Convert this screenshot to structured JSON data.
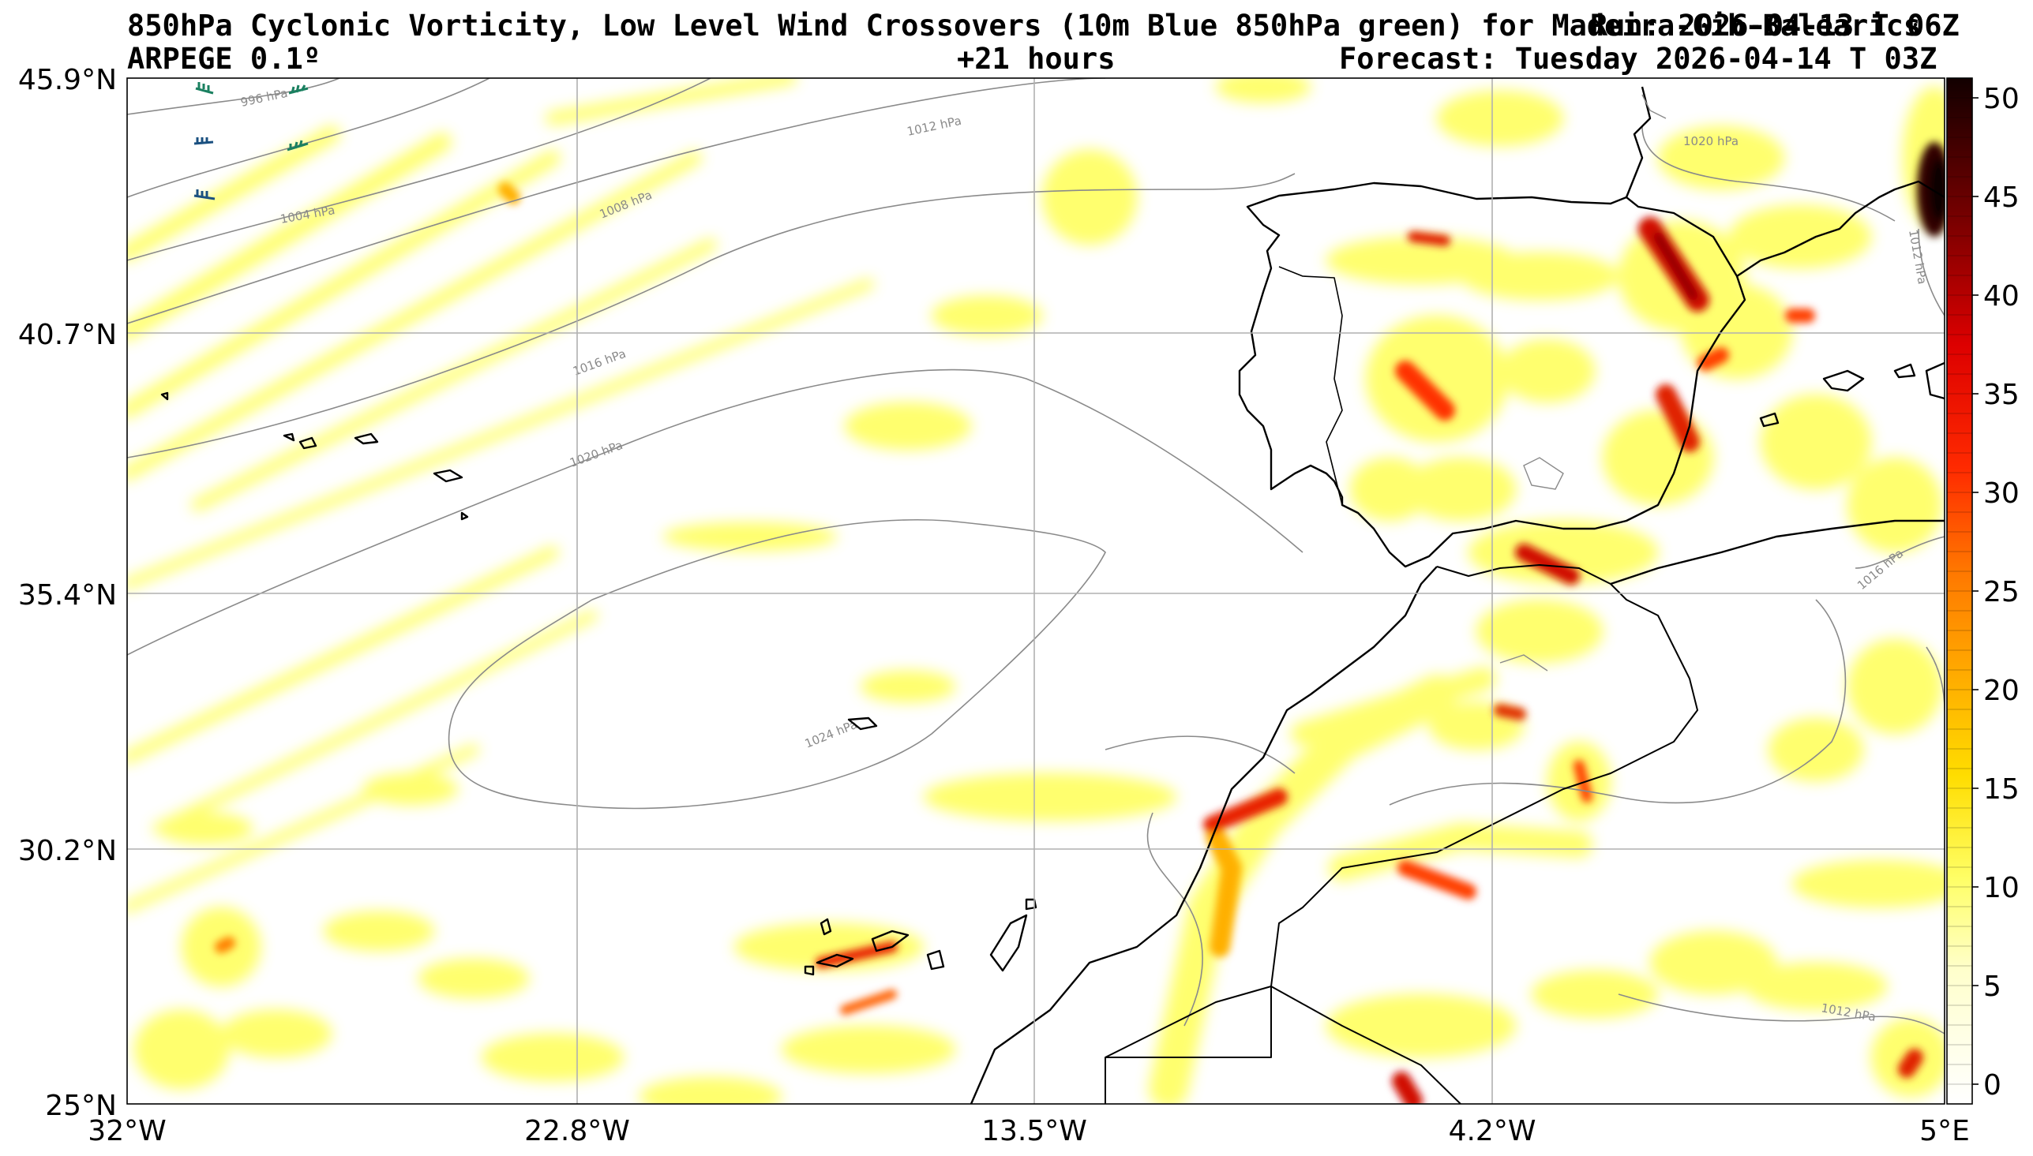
{
  "header": {
    "title": "850hPa Cyclonic Vorticity, Low Level Wind Crossovers (10m Blue 850hPa green) for Madeira-Gib-Balearics",
    "run": "Run: 2026-04-13 T 06Z",
    "model": "ARPEGE 0.1º",
    "lead": "+21 hours",
    "valid": "Forecast: Tuesday 2026-04-14 T 03Z"
  },
  "axes": {
    "lat_labels": [
      "45.9°N",
      "40.7°N",
      "35.4°N",
      "30.2°N",
      "25°N"
    ],
    "lon_labels": [
      "32°W",
      "22.8°W",
      "13.5°W",
      "4.2°W",
      "5°E"
    ]
  },
  "colorbar": {
    "labels": [
      "0",
      "5",
      "10",
      "15",
      "20",
      "25",
      "30",
      "35",
      "40",
      "45",
      "50"
    ],
    "range": [
      -1,
      51
    ]
  },
  "isobars": {
    "labels": [
      "996 hPa",
      "1004 hPa",
      "1008 hPa",
      "1012 hPa",
      "1016 hPa",
      "1020 hPa",
      "1024 hPa",
      "1012 hPa",
      "1016 hPa",
      "1020 hPa",
      "1012 hPa"
    ]
  },
  "colors": {
    "vorticity_low": "#ffff66",
    "vorticity_mid": "#ff8c00",
    "vorticity_high": "#e00000",
    "vorticity_max": "#1a0000",
    "isobar": "#8a8a8a",
    "coast": "#000000",
    "grid": "#b0b0b0"
  }
}
